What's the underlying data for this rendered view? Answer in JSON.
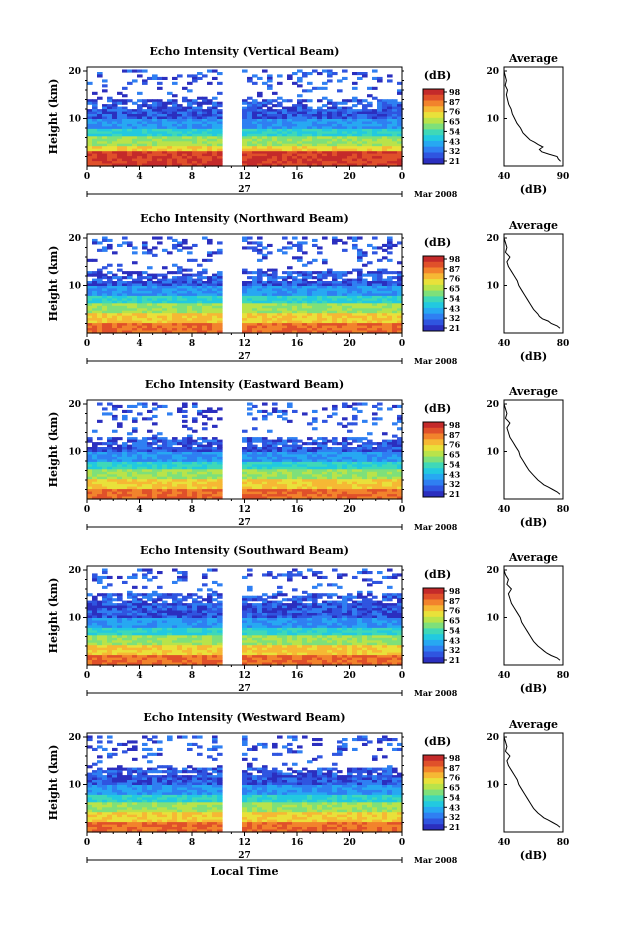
{
  "palette": [
    "#2b2fbf",
    "#2f55e0",
    "#2f7ff2",
    "#27a8f2",
    "#22c9e0",
    "#3fd8b8",
    "#7ee07a",
    "#b9e34a",
    "#e9e13a",
    "#f6b834",
    "#f2832c",
    "#e0502a",
    "#c42a2a"
  ],
  "chart_data": [
    {
      "type": "heatmap",
      "title": "Echo Intensity (Vertical Beam)",
      "ylabel": "Height (km)",
      "yticks": [
        "20",
        "10"
      ],
      "xticks": [
        "0",
        "4",
        "8",
        "12",
        "16",
        "20",
        "0"
      ],
      "date_label": "27",
      "month_label": "Mar 2008",
      "xlabel": "",
      "colorbar_label": "(dB)",
      "colorbar_ticks": [
        "98",
        "87",
        "76",
        "65",
        "54",
        "43",
        "32",
        "21"
      ],
      "gap_hours": [
        10.4,
        11.6
      ],
      "thresholds": [
        17.2,
        14.2,
        11.8
      ],
      "avg_title": "Average",
      "avg_xticks": [
        "40",
        "90"
      ],
      "avg_xlabel": "(dB)",
      "avg_yticks": [
        "20",
        "10"
      ],
      "avg_xlim": [
        40,
        90
      ],
      "average_profile": {
        "height_km": [
          1.0,
          1.5,
          2.0,
          2.5,
          3.0,
          3.5,
          4.0,
          4.5,
          5.0,
          5.5,
          6.0,
          6.5,
          7.0,
          7.5,
          8.0,
          9.0,
          10.0,
          11.0,
          12.0,
          13.0,
          14.0,
          15.0,
          16.0,
          17.0,
          18.0,
          19.0,
          20.0
        ],
        "db": [
          88,
          86,
          85,
          78,
          72,
          70,
          73,
          69,
          66,
          62,
          60,
          58,
          56,
          55,
          54,
          51,
          49,
          47,
          46,
          44,
          43,
          42,
          43,
          41,
          42,
          41,
          40
        ]
      }
    },
    {
      "type": "heatmap",
      "title": "Echo Intensity (Northward Beam)",
      "ylabel": "Height (km)",
      "yticks": [
        "20",
        "10"
      ],
      "xticks": [
        "0",
        "4",
        "8",
        "12",
        "16",
        "20",
        "0"
      ],
      "date_label": "27",
      "month_label": "Mar 2008",
      "xlabel": "",
      "colorbar_label": "(dB)",
      "colorbar_ticks": [
        "98",
        "87",
        "76",
        "65",
        "54",
        "43",
        "32",
        "21"
      ],
      "gap_hours": [
        10.4,
        11.6
      ],
      "thresholds": [
        16.5,
        12.8,
        11.2
      ],
      "avg_title": "Average",
      "avg_xticks": [
        "40",
        "80"
      ],
      "avg_xlabel": "(dB)",
      "avg_yticks": [
        "20",
        "10"
      ],
      "avg_xlim": [
        40,
        80
      ],
      "average_profile": {
        "height_km": [
          1.0,
          1.5,
          2.0,
          2.5,
          3.0,
          3.5,
          4.0,
          5.0,
          6.0,
          7.0,
          8.0,
          9.0,
          10.0,
          11.0,
          12.0,
          13.0,
          14.0,
          15.0,
          16.0,
          17.0,
          18.0,
          19.0,
          20.0
        ],
        "db": [
          78,
          76,
          72,
          70,
          66,
          64,
          63,
          60,
          58,
          56,
          54,
          52,
          50,
          49,
          47,
          45,
          43,
          42,
          44,
          41,
          42,
          41,
          40
        ]
      }
    },
    {
      "type": "heatmap",
      "title": "Echo Intensity (Eastward Beam)",
      "ylabel": "Height (km)",
      "yticks": [
        "20",
        "10"
      ],
      "xticks": [
        "0",
        "4",
        "8",
        "12",
        "16",
        "20",
        "0"
      ],
      "date_label": "27",
      "month_label": "Mar 2008",
      "xlabel": "",
      "colorbar_label": "(dB)",
      "colorbar_ticks": [
        "98",
        "87",
        "76",
        "65",
        "54",
        "43",
        "32",
        "21"
      ],
      "gap_hours": [
        10.4,
        11.6
      ],
      "thresholds": [
        16.8,
        13.0,
        11.0
      ],
      "avg_title": "Average",
      "avg_xticks": [
        "40",
        "80"
      ],
      "avg_xlabel": "(dB)",
      "avg_yticks": [
        "20",
        "10"
      ],
      "avg_xlim": [
        40,
        80
      ],
      "average_profile": {
        "height_km": [
          1.0,
          1.5,
          2.0,
          2.5,
          3.0,
          3.5,
          4.0,
          5.0,
          6.0,
          7.0,
          8.0,
          9.0,
          10.0,
          11.0,
          12.0,
          13.0,
          14.0,
          15.0,
          16.0,
          17.0,
          18.0,
          19.0,
          20.0
        ],
        "db": [
          78,
          76,
          73,
          70,
          67,
          65,
          63,
          60,
          57,
          55,
          53,
          51,
          50,
          48,
          46,
          44,
          43,
          42,
          44,
          41,
          42,
          41,
          40
        ]
      }
    },
    {
      "type": "heatmap",
      "title": "Echo Intensity (Southward Beam)",
      "ylabel": "Height (km)",
      "yticks": [
        "20",
        "10"
      ],
      "xticks": [
        "0",
        "4",
        "8",
        "12",
        "16",
        "20",
        "0"
      ],
      "date_label": "27",
      "month_label": "Mar 2008",
      "xlabel": "",
      "colorbar_label": "(dB)",
      "colorbar_ticks": [
        "98",
        "87",
        "76",
        "65",
        "54",
        "43",
        "32",
        "21"
      ],
      "gap_hours": [
        10.4,
        11.6
      ],
      "thresholds": [
        18.2,
        15.0,
        13.0
      ],
      "avg_title": "Average",
      "avg_xticks": [
        "40",
        "80"
      ],
      "avg_xlabel": "(dB)",
      "avg_yticks": [
        "20",
        "10"
      ],
      "avg_xlim": [
        40,
        80
      ],
      "average_profile": {
        "height_km": [
          1.0,
          1.5,
          2.0,
          2.5,
          3.0,
          3.5,
          4.0,
          5.0,
          6.0,
          7.0,
          8.0,
          9.0,
          10.0,
          11.0,
          12.0,
          13.0,
          14.0,
          15.0,
          16.0,
          17.0,
          18.0,
          19.0,
          20.0
        ],
        "db": [
          78,
          76,
          72,
          69,
          67,
          65,
          63,
          60,
          58,
          56,
          54,
          52,
          51,
          49,
          47,
          45,
          44,
          43,
          45,
          42,
          43,
          41,
          40
        ]
      }
    },
    {
      "type": "heatmap",
      "title": "Echo Intensity (Westward Beam)",
      "ylabel": "Height (km)",
      "yticks": [
        "20",
        "10"
      ],
      "xticks": [
        "0",
        "4",
        "8",
        "12",
        "16",
        "20",
        "0"
      ],
      "date_label": "27",
      "month_label": "Mar 2008",
      "xlabel": "Local Time",
      "colorbar_label": "(dB)",
      "colorbar_ticks": [
        "98",
        "87",
        "76",
        "65",
        "54",
        "43",
        "32",
        "21"
      ],
      "gap_hours": [
        10.4,
        11.6
      ],
      "thresholds": [
        17.0,
        13.5,
        12.0
      ],
      "avg_title": "Average",
      "avg_xticks": [
        "40",
        "80"
      ],
      "avg_xlabel": "(dB)",
      "avg_yticks": [
        "20",
        "10"
      ],
      "avg_xlim": [
        40,
        80
      ],
      "average_profile": {
        "height_km": [
          1.0,
          1.5,
          2.0,
          2.5,
          3.0,
          3.5,
          4.0,
          5.0,
          6.0,
          7.0,
          8.0,
          9.0,
          10.0,
          11.0,
          12.0,
          13.0,
          14.0,
          15.0,
          16.0,
          17.0,
          18.0,
          19.0,
          20.0
        ],
        "db": [
          78,
          76,
          73,
          70,
          67,
          65,
          63,
          60,
          58,
          56,
          54,
          52,
          50,
          49,
          47,
          45,
          43,
          42,
          44,
          41,
          42,
          41,
          40
        ]
      }
    }
  ]
}
